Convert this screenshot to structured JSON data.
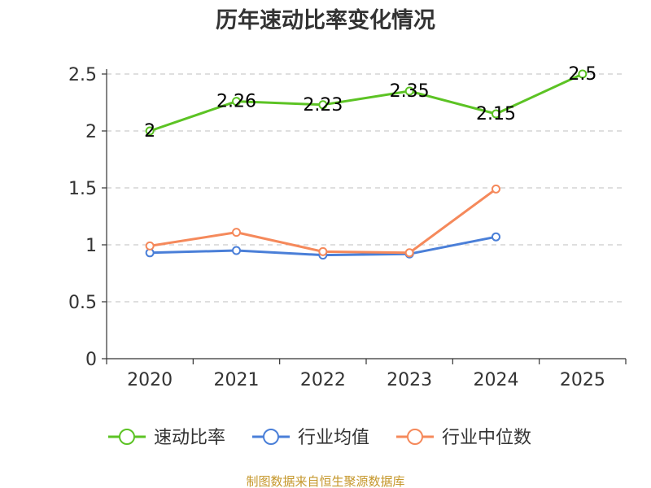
{
  "chart_data": {
    "type": "line",
    "title": "历年速动比率变化情况",
    "categories": [
      "2020",
      "2021",
      "2022",
      "2023",
      "2024",
      "2025"
    ],
    "ylim": [
      0,
      2.5
    ],
    "yticks": [
      0,
      0.5,
      1,
      1.5,
      2,
      2.5
    ],
    "ytick_labels": [
      "0",
      "0.5",
      "1",
      "1.5",
      "2",
      "2.5"
    ],
    "grid": true,
    "legend_position": "bottom",
    "series": [
      {
        "name": "速动比率",
        "color": "#5cc324",
        "values": [
          2,
          2.26,
          2.23,
          2.35,
          2.15,
          2.5
        ],
        "labels": [
          "2",
          "2.26",
          "2.23",
          "2.35",
          "2.15",
          "2.5"
        ]
      },
      {
        "name": "行业均值",
        "color": "#4a7fd8",
        "values": [
          0.93,
          0.95,
          0.91,
          0.92,
          1.07,
          null
        ]
      },
      {
        "name": "行业中位数",
        "color": "#f5895b",
        "values": [
          0.99,
          1.11,
          0.94,
          0.93,
          1.49,
          null
        ]
      }
    ],
    "source": "制图数据来自恒生聚源数据库"
  }
}
